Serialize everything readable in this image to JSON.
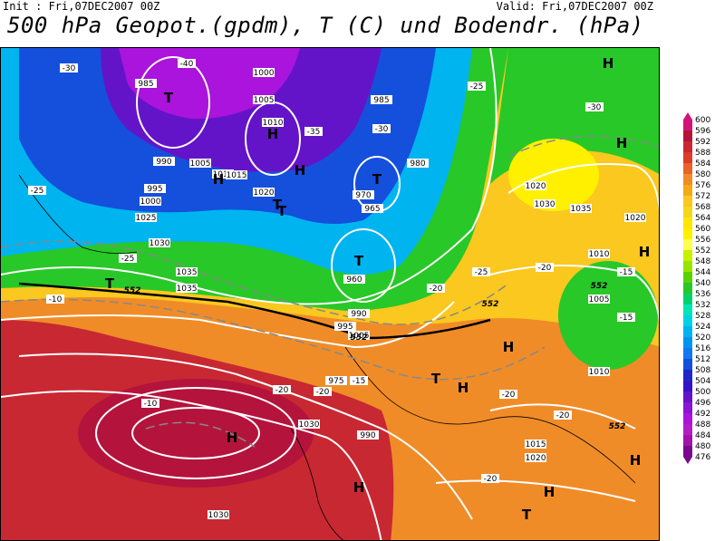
{
  "header": {
    "init": "Init : Fri,07DEC2007 00Z",
    "valid": "Valid: Fri,07DEC2007 00Z",
    "title": "500 hPa Geopot.(gpdm), T (C) und Bodendr. (hPa)"
  },
  "legend": {
    "levels": [
      "600",
      "596",
      "592",
      "588",
      "584",
      "580",
      "576",
      "572",
      "568",
      "564",
      "560",
      "556",
      "552",
      "548",
      "544",
      "540",
      "536",
      "532",
      "528",
      "524",
      "520",
      "516",
      "512",
      "508",
      "504",
      "500",
      "496",
      "492",
      "488",
      "484",
      "480",
      "476"
    ],
    "colors": [
      "#d2147a",
      "#b4143c",
      "#c82832",
      "#dc3c28",
      "#e8642a",
      "#f08c28",
      "#f5aa14",
      "#fac81e",
      "#f5d71e",
      "#ffe600",
      "#fff000",
      "#ffff50",
      "#c8f000",
      "#96e600",
      "#5ad200",
      "#28c828",
      "#00d26e",
      "#00e6b4",
      "#00d2e6",
      "#00b4f0",
      "#0096f0",
      "#1478f0",
      "#1450dc",
      "#1e28c8",
      "#3214c8",
      "#6414c8",
      "#8c14d2",
      "#aa14dc",
      "#b41ec8",
      "#a014aa",
      "#7a0a8c"
    ]
  },
  "map": {
    "contour_labels": [
      "985",
      "995",
      "1000",
      "1005",
      "1010",
      "1015",
      "1020",
      "1025",
      "1030",
      "1035",
      "990",
      "980",
      "975",
      "970",
      "965",
      "960"
    ],
    "pressure_labels": [
      {
        "text": "985"
      },
      {
        "text": "1000"
      },
      {
        "text": "1005"
      },
      {
        "text": "1010"
      },
      {
        "text": "990"
      },
      {
        "text": "995"
      },
      {
        "text": "1000"
      },
      {
        "text": "1005"
      },
      {
        "text": "1010"
      },
      {
        "text": "1015"
      },
      {
        "text": "1020"
      },
      {
        "text": "1025"
      },
      {
        "text": "1030"
      },
      {
        "text": "1035"
      },
      {
        "text": "1035"
      },
      {
        "text": "1030"
      },
      {
        "text": "975"
      },
      {
        "text": "970"
      },
      {
        "text": "965"
      },
      {
        "text": "985"
      },
      {
        "text": "980"
      },
      {
        "text": "960"
      },
      {
        "text": "990"
      },
      {
        "text": "995"
      },
      {
        "text": "1005"
      },
      {
        "text": "990"
      },
      {
        "text": "1020"
      },
      {
        "text": "1030"
      },
      {
        "text": "1035"
      },
      {
        "text": "1020"
      },
      {
        "text": "1010"
      },
      {
        "text": "1005"
      },
      {
        "text": "1015"
      },
      {
        "text": "1020"
      },
      {
        "text": "1010"
      },
      {
        "text": "1030"
      }
    ],
    "temp_labels": [
      "-40",
      "-30",
      "-35",
      "-30",
      "-25",
      "-25",
      "-25",
      "-20",
      "-20",
      "-15",
      "-10",
      "-10",
      "-15",
      "-20",
      "-20",
      "-20",
      "-30",
      "-25",
      "-20",
      "-20",
      "-15"
    ],
    "geopot_labels": [
      "552",
      "552",
      "552",
      "552",
      "552"
    ],
    "highs": [
      "H",
      "H",
      "H",
      "H",
      "H",
      "H",
      "H",
      "H",
      "H",
      "H",
      "H",
      "H"
    ],
    "lows": [
      "T",
      "T",
      "T",
      "T",
      "T",
      "T",
      "T",
      "T"
    ]
  }
}
